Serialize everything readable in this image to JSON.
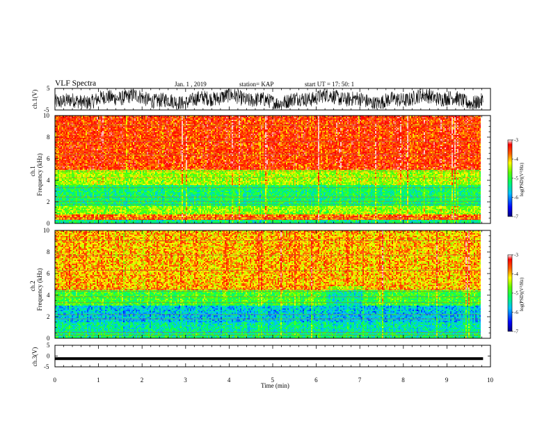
{
  "header": {
    "title": "VLF Spectra",
    "date": "Jan. 1 , 2019",
    "station": "station= KAP",
    "start_ut": "start UT = 17: 50: 1"
  },
  "colors": {
    "colormap": [
      "#0000c8",
      "#0060ff",
      "#00d8ff",
      "#00ff80",
      "#40ff00",
      "#ffff00",
      "#ff8000",
      "#ff2000",
      "#ffc0c0"
    ]
  },
  "chart_data": [
    {
      "type": "line",
      "panel": "ch1-waveform",
      "ylabel": "ch.1(V)",
      "ylim": [
        -5,
        5
      ],
      "yticks": [
        "5",
        "-5"
      ],
      "xlim": [
        0,
        10
      ],
      "description_values": {
        "amplitude_range_V": [
          -4.5,
          4.8
        ]
      }
    },
    {
      "type": "heatmap",
      "panel": "ch1-spectrogram",
      "ylabel": [
        "ch.1",
        "Frequency (kHz)"
      ],
      "ylim": [
        0,
        10
      ],
      "yticks": [
        "0",
        "2",
        "4",
        "6",
        "8",
        "10"
      ],
      "xlim": [
        0,
        9.83
      ],
      "bands_kHz": [
        {
          "from": 0.0,
          "to": 0.3,
          "level": -5.3
        },
        {
          "from": 0.3,
          "to": 0.9,
          "level": -3.8
        },
        {
          "from": 0.9,
          "to": 1.6,
          "level": -4.6
        },
        {
          "from": 1.6,
          "to": 3.5,
          "level": -5.2
        },
        {
          "from": 3.5,
          "to": 5.0,
          "level": -4.5
        },
        {
          "from": 5.0,
          "to": 10.0,
          "level": -3.6
        }
      ],
      "colorbar": {
        "label": "log(PSD)(V²/Hz)",
        "ticks": [
          "-3",
          "-4",
          "-5",
          "-6",
          "-7"
        ],
        "range": [
          -7,
          -3
        ]
      }
    },
    {
      "type": "heatmap",
      "panel": "ch2-spectrogram",
      "ylabel": [
        "ch.2",
        "Frequency (kHz)"
      ],
      "ylim": [
        0,
        10
      ],
      "yticks": [
        "0",
        "2",
        "4",
        "6",
        "8",
        "10"
      ],
      "xlim": [
        0,
        9.83
      ],
      "bands_kHz": [
        {
          "from": 0.0,
          "to": 0.4,
          "level": -5.2
        },
        {
          "from": 0.4,
          "to": 1.5,
          "level": -5.4
        },
        {
          "from": 1.5,
          "to": 3.0,
          "level": -5.7
        },
        {
          "from": 3.0,
          "to": 4.5,
          "level": -4.9
        },
        {
          "from": 4.5,
          "to": 10.0,
          "level": -4.0
        }
      ],
      "colorbar": {
        "label": "log(PSD)(V²/Hz)",
        "ticks": [
          "-3",
          "-4",
          "-5",
          "-6",
          "-7"
        ],
        "range": [
          -7,
          -3
        ]
      }
    },
    {
      "type": "line",
      "panel": "ch3-waveform",
      "ylabel": "ch.3(V)",
      "ylim": [
        -5,
        5
      ],
      "yticks": [
        "5",
        "0",
        "-5"
      ],
      "xlim": [
        0,
        10
      ],
      "series": [
        {
          "values_constant": -1.2
        }
      ]
    }
  ],
  "xaxis": {
    "label": "Time (min)",
    "ticks": [
      "0",
      "1",
      "2",
      "3",
      "4",
      "5",
      "6",
      "7",
      "8",
      "9",
      "10"
    ]
  }
}
